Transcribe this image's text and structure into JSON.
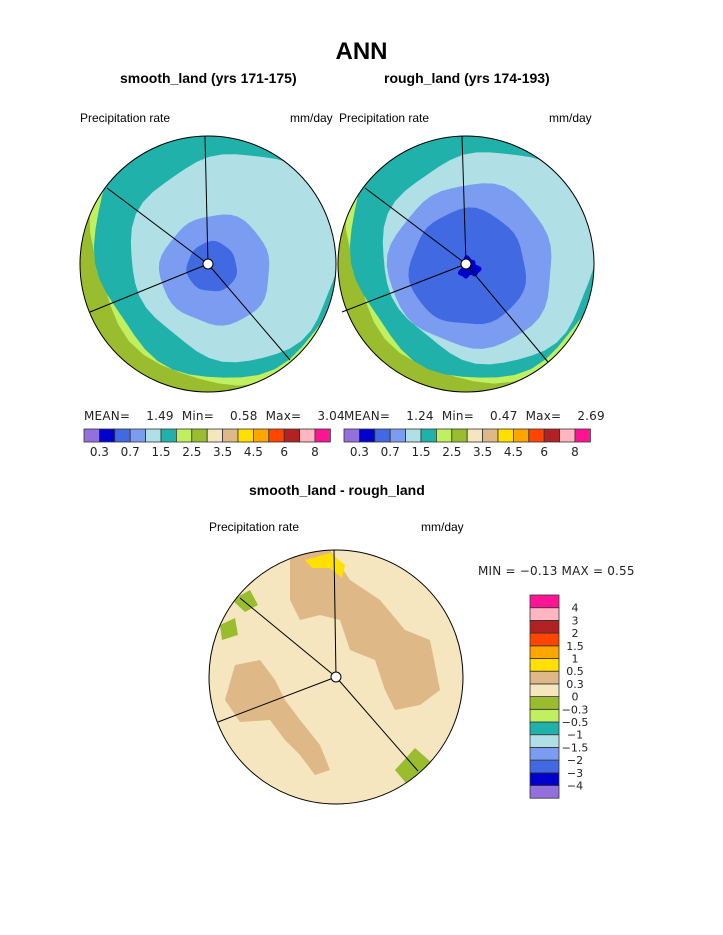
{
  "chart_data": [
    {
      "type": "polar-contour",
      "title": "smooth_land (yrs 171-175)",
      "left_label": "Precipitation rate",
      "right_label": "mm/day",
      "stats": {
        "mean_label": "MEAN=",
        "mean": "1.49",
        "min_label": "Min=",
        "min": "0.58",
        "max_label": "Max=",
        "max": "3.04"
      }
    },
    {
      "type": "polar-contour",
      "title": "rough_land (yrs 174-193)",
      "left_label": "Precipitation rate",
      "right_label": "mm/day",
      "stats": {
        "mean_label": "MEAN=",
        "mean": "1.24",
        "min_label": "Min=",
        "min": "0.47",
        "max_label": "Max=",
        "max": "2.69"
      }
    },
    {
      "type": "polar-contour",
      "title": "smooth_land - rough_land",
      "left_label": "Precipitation rate",
      "right_label": "mm/day",
      "stats": {
        "text": "MIN =  −0.13 MAX =    0.55"
      }
    }
  ],
  "main_title": "ANN",
  "colorbar_top": {
    "colors": [
      "#9370db",
      "#0000cd",
      "#4169e1",
      "#7b9cf0",
      "#b0e0e6",
      "#20b2aa",
      "#c0f060",
      "#9abd30",
      "#f5e6c0",
      "#deb887",
      "#ffe000",
      "#ffa500",
      "#ff4500",
      "#b22222",
      "#ffb6c1",
      "#ff1493"
    ],
    "ticks": [
      "0.3",
      "0.7",
      "1.5",
      "2.5",
      "3.5",
      "4.5",
      "6",
      "8"
    ]
  },
  "colorbar_diff": {
    "colors": [
      "#9370db",
      "#0000cd",
      "#4169e1",
      "#7b9cf0",
      "#b0e0e6",
      "#20b2aa",
      "#c0f060",
      "#9abd30",
      "#f5e6c0",
      "#deb887",
      "#ffe000",
      "#ffa500",
      "#ff4500",
      "#b22222",
      "#ffb6c1",
      "#ff1493"
    ],
    "ticks": [
      "−4",
      "−3",
      "−2",
      "−1.5",
      "−1",
      "−0.5",
      "−0.3",
      "0",
      "0.3",
      "0.5",
      "1",
      "1.5",
      "2",
      "3",
      "4"
    ]
  }
}
